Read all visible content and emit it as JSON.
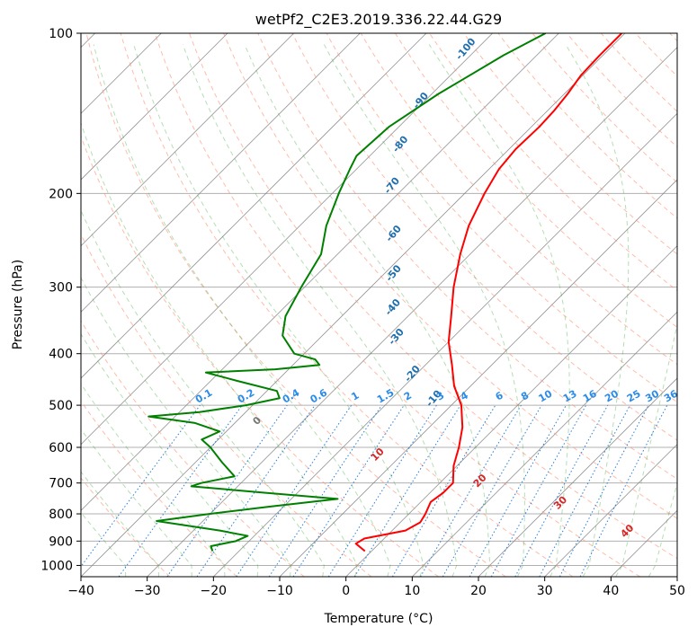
{
  "chart_data": {
    "type": "line",
    "subtype": "skew-T log-P diagram",
    "title": "wetPf2_C2E3.2019.336.22.44.G29",
    "xlabel": "Temperature (°C)",
    "ylabel": "Pressure (hPa)",
    "xlim": [
      -40,
      50
    ],
    "ylim": [
      1050,
      100
    ],
    "y_scale": "log",
    "x_ticks": [
      -40,
      -30,
      -20,
      -10,
      0,
      10,
      20,
      30,
      40,
      50
    ],
    "y_ticks": [
      100,
      200,
      300,
      400,
      500,
      600,
      700,
      800,
      900,
      1000
    ],
    "grid": true,
    "series": [
      {
        "role": "temperature",
        "color": "#ff0000",
        "points": [
          [
            100,
            -40.5
          ],
          [
            110,
            -40.5
          ],
          [
            120,
            -40.3
          ],
          [
            130,
            -39.5
          ],
          [
            140,
            -39.0
          ],
          [
            150,
            -38.8
          ],
          [
            165,
            -39.0
          ],
          [
            180,
            -38.5
          ],
          [
            200,
            -37.0
          ],
          [
            230,
            -34.5
          ],
          [
            260,
            -31.5
          ],
          [
            300,
            -27.5
          ],
          [
            340,
            -23.5
          ],
          [
            380,
            -20.0
          ],
          [
            420,
            -16.0
          ],
          [
            460,
            -12.5
          ],
          [
            500,
            -8.5
          ],
          [
            550,
            -5.0
          ],
          [
            600,
            -2.5
          ],
          [
            650,
            -0.5
          ],
          [
            700,
            2.0
          ],
          [
            730,
            2.0
          ],
          [
            760,
            1.5
          ],
          [
            800,
            2.5
          ],
          [
            830,
            3.0
          ],
          [
            860,
            2.0
          ],
          [
            890,
            -3.0
          ],
          [
            910,
            -3.5
          ],
          [
            940,
            -1.0
          ]
        ]
      },
      {
        "role": "dewpoint",
        "color": "#008000",
        "points": [
          [
            100,
            -52.0
          ],
          [
            110,
            -55.0
          ],
          [
            130,
            -59.0
          ],
          [
            150,
            -61.5
          ],
          [
            170,
            -62.0
          ],
          [
            180,
            -61.0
          ],
          [
            200,
            -59.0
          ],
          [
            230,
            -56.0
          ],
          [
            260,
            -52.5
          ],
          [
            300,
            -50.5
          ],
          [
            340,
            -48.5
          ],
          [
            370,
            -46.0
          ],
          [
            400,
            -41.5
          ],
          [
            410,
            -37.5
          ],
          [
            420,
            -36.0
          ],
          [
            428,
            -42.0
          ],
          [
            434,
            -52.0
          ],
          [
            450,
            -46.0
          ],
          [
            470,
            -38.5
          ],
          [
            485,
            -37.0
          ],
          [
            500,
            -41.0
          ],
          [
            515,
            -47.0
          ],
          [
            525,
            -54.0
          ],
          [
            540,
            -46.0
          ],
          [
            560,
            -41.0
          ],
          [
            580,
            -42.5
          ],
          [
            600,
            -40.0
          ],
          [
            640,
            -36.0
          ],
          [
            680,
            -32.0
          ],
          [
            700,
            -36.0
          ],
          [
            710,
            -37.0
          ],
          [
            730,
            -25.0
          ],
          [
            750,
            -13.0
          ],
          [
            775,
            -22.0
          ],
          [
            800,
            -30.0
          ],
          [
            825,
            -37.0
          ],
          [
            860,
            -26.0
          ],
          [
            880,
            -21.0
          ],
          [
            900,
            -22.0
          ],
          [
            920,
            -25.0
          ],
          [
            940,
            -24.0
          ]
        ]
      }
    ],
    "dry_adiabat_labels": [
      "-100",
      "-90",
      "-80",
      "-70",
      "-60",
      "-50",
      "-40",
      "-30",
      "-20",
      "-10"
    ],
    "mixing_ratio_labels": [
      "0.1",
      "0.2",
      "0.4",
      "0.6",
      "1",
      "1.5",
      "2",
      "3",
      "4",
      "6",
      "8",
      "10",
      "13",
      "16",
      "20",
      "25",
      "30",
      "36"
    ],
    "moist_adiabat_labels": [
      "0",
      "10",
      "20",
      "30",
      "40"
    ],
    "colors": {
      "isotherm": "#808080",
      "dry_adiabat": "#ff9070",
      "moist_adiabat": "#2ca02c",
      "mixing_ratio": "#1e78d8",
      "dry_label": "#1f6fae",
      "moist_label": "#d62728",
      "mixing_label": "#2b8be8",
      "freezing_label": "#777777"
    }
  }
}
